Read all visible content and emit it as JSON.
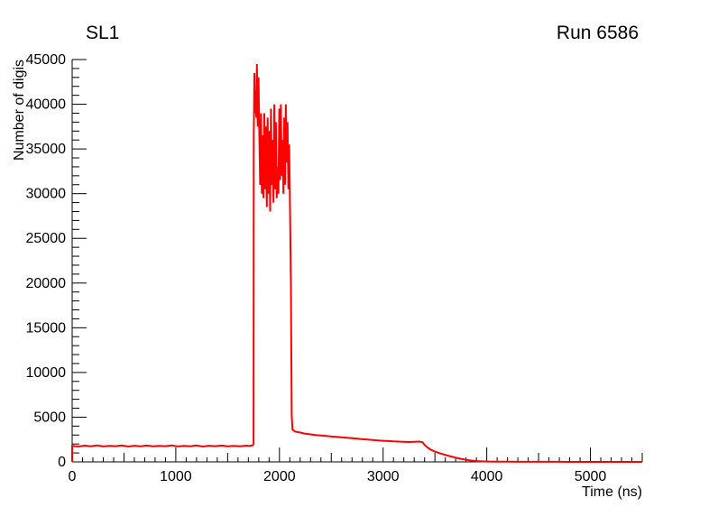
{
  "chart_data": {
    "type": "line",
    "title": "SL1",
    "annotation": "Run 6586",
    "xlabel": "Time (ns)",
    "ylabel": "Number of digis",
    "xlim": [
      0,
      5500
    ],
    "ylim": [
      0,
      45000
    ],
    "x_major_ticks": [
      0,
      1000,
      2000,
      3000,
      4000,
      5000
    ],
    "x_medium_step": 500,
    "x_minor_step": 100,
    "y_major_ticks": [
      0,
      5000,
      10000,
      15000,
      20000,
      25000,
      30000,
      35000,
      40000,
      45000
    ],
    "y_minor_step": 1000,
    "line_color": "#ff0000",
    "legend_position": "none",
    "grid": false,
    "points": [
      [
        0,
        0
      ],
      [
        0,
        1800
      ],
      [
        60,
        1720
      ],
      [
        120,
        1820
      ],
      [
        180,
        1750
      ],
      [
        240,
        1850
      ],
      [
        300,
        1730
      ],
      [
        360,
        1800
      ],
      [
        420,
        1760
      ],
      [
        480,
        1840
      ],
      [
        540,
        1720
      ],
      [
        600,
        1810
      ],
      [
        660,
        1750
      ],
      [
        720,
        1830
      ],
      [
        780,
        1740
      ],
      [
        840,
        1800
      ],
      [
        900,
        1760
      ],
      [
        960,
        1850
      ],
      [
        1020,
        1730
      ],
      [
        1080,
        1800
      ],
      [
        1140,
        1750
      ],
      [
        1200,
        1840
      ],
      [
        1260,
        1720
      ],
      [
        1320,
        1810
      ],
      [
        1380,
        1760
      ],
      [
        1440,
        1830
      ],
      [
        1500,
        1740
      ],
      [
        1560,
        1800
      ],
      [
        1620,
        1750
      ],
      [
        1680,
        1820
      ],
      [
        1710,
        1780
      ],
      [
        1740,
        1850
      ],
      [
        1750,
        2000
      ],
      [
        1752,
        36000
      ],
      [
        1758,
        43500
      ],
      [
        1764,
        39000
      ],
      [
        1770,
        41500
      ],
      [
        1776,
        38500
      ],
      [
        1782,
        44500
      ],
      [
        1790,
        37500
      ],
      [
        1798,
        43000
      ],
      [
        1806,
        36500
      ],
      [
        1814,
        31000
      ],
      [
        1822,
        39000
      ],
      [
        1830,
        30000
      ],
      [
        1838,
        36500
      ],
      [
        1846,
        29500
      ],
      [
        1854,
        39000
      ],
      [
        1862,
        30500
      ],
      [
        1870,
        37500
      ],
      [
        1878,
        28500
      ],
      [
        1886,
        38500
      ],
      [
        1894,
        30000
      ],
      [
        1902,
        37000
      ],
      [
        1910,
        28000
      ],
      [
        1918,
        39500
      ],
      [
        1926,
        31000
      ],
      [
        1934,
        36000
      ],
      [
        1942,
        29000
      ],
      [
        1950,
        40000
      ],
      [
        1958,
        30500
      ],
      [
        1966,
        38000
      ],
      [
        1974,
        29500
      ],
      [
        1982,
        33000
      ],
      [
        1990,
        30000
      ],
      [
        1998,
        39500
      ],
      [
        2006,
        31500
      ],
      [
        2014,
        40000
      ],
      [
        2022,
        32000
      ],
      [
        2030,
        36000
      ],
      [
        2038,
        30000
      ],
      [
        2046,
        38500
      ],
      [
        2054,
        31000
      ],
      [
        2062,
        40000
      ],
      [
        2070,
        33500
      ],
      [
        2078,
        38000
      ],
      [
        2086,
        30500
      ],
      [
        2094,
        35500
      ],
      [
        2102,
        28500
      ],
      [
        2110,
        20000
      ],
      [
        2118,
        5200
      ],
      [
        2126,
        3600
      ],
      [
        2150,
        3400
      ],
      [
        2200,
        3280
      ],
      [
        2250,
        3150
      ],
      [
        2300,
        3080
      ],
      [
        2350,
        3000
      ],
      [
        2400,
        2950
      ],
      [
        2450,
        2900
      ],
      [
        2500,
        2840
      ],
      [
        2550,
        2800
      ],
      [
        2600,
        2740
      ],
      [
        2650,
        2700
      ],
      [
        2700,
        2640
      ],
      [
        2750,
        2590
      ],
      [
        2800,
        2530
      ],
      [
        2850,
        2490
      ],
      [
        2900,
        2440
      ],
      [
        2950,
        2390
      ],
      [
        3000,
        2360
      ],
      [
        3050,
        2330
      ],
      [
        3100,
        2290
      ],
      [
        3150,
        2270
      ],
      [
        3200,
        2240
      ],
      [
        3250,
        2220
      ],
      [
        3300,
        2240
      ],
      [
        3350,
        2270
      ],
      [
        3380,
        2200
      ],
      [
        3400,
        1900
      ],
      [
        3430,
        1600
      ],
      [
        3460,
        1350
      ],
      [
        3500,
        1150
      ],
      [
        3550,
        950
      ],
      [
        3600,
        780
      ],
      [
        3650,
        620
      ],
      [
        3700,
        470
      ],
      [
        3750,
        340
      ],
      [
        3800,
        230
      ],
      [
        3850,
        150
      ],
      [
        3900,
        90
      ],
      [
        3950,
        60
      ],
      [
        4000,
        40
      ],
      [
        4100,
        25
      ],
      [
        4200,
        18
      ],
      [
        4300,
        12
      ],
      [
        4400,
        10
      ],
      [
        4500,
        8
      ],
      [
        4600,
        7
      ],
      [
        4700,
        6
      ],
      [
        4800,
        5
      ],
      [
        4900,
        5
      ],
      [
        5000,
        4
      ],
      [
        5100,
        4
      ],
      [
        5200,
        3
      ],
      [
        5300,
        3
      ],
      [
        5400,
        3
      ],
      [
        5500,
        3
      ]
    ]
  }
}
